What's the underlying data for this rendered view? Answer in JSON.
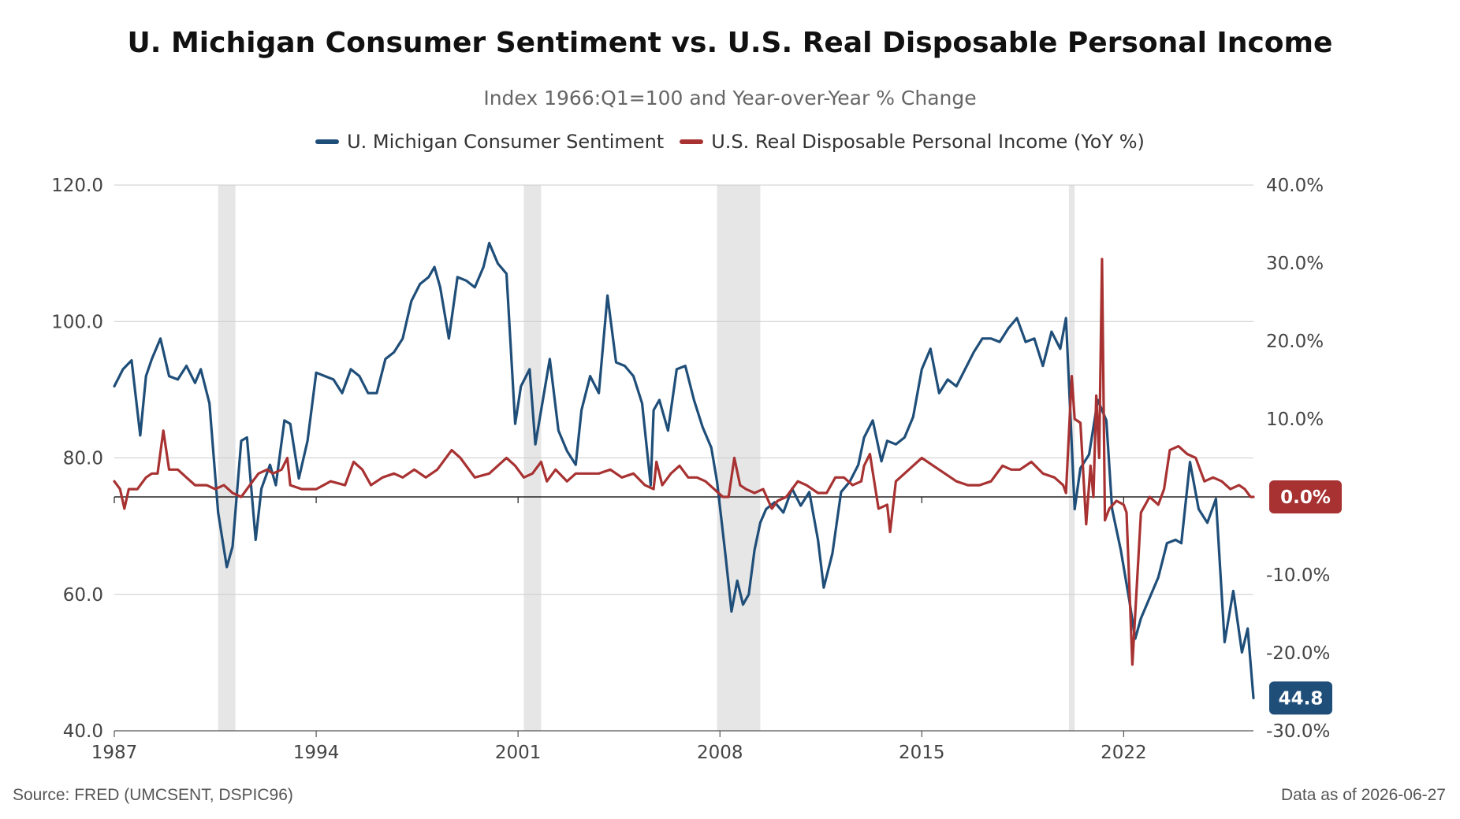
{
  "title": "U. Michigan Consumer Sentiment vs. U.S. Real Disposable Personal Income",
  "subtitle": "Index 1966:Q1=100 and Year-over-Year % Change",
  "footer": {
    "source": "Source: FRED (UMCSENT, DSPIC96)",
    "asof": "Data as of 2026-06-27"
  },
  "colors": {
    "sentiment": "#1f4e79",
    "income": "#a83232",
    "recession": "#e6e6e6",
    "grid": "#cccccc"
  },
  "chart_data": {
    "type": "line",
    "legend": "top-center",
    "grid": true,
    "xlim": [
      1987,
      2026.5
    ],
    "x_ticks": [
      "1987",
      "1994",
      "2001",
      "2008",
      "2015",
      "2022"
    ],
    "y_left": {
      "ylim": [
        40,
        120
      ],
      "ticks": [
        "40.0",
        "60.0",
        "80.0",
        "100.0",
        "120.0"
      ]
    },
    "y_right": {
      "ylim": [
        -30,
        40
      ],
      "ticks": [
        "-30.0%",
        "-20.0%",
        "-10.0%",
        "0.0%",
        "10.0%",
        "20.0%",
        "30.0%",
        "40.0%"
      ]
    },
    "recessions": [
      [
        1990.6,
        1991.2
      ],
      [
        2001.2,
        2001.8
      ],
      [
        2007.9,
        2009.4
      ],
      [
        2020.1,
        2020.3
      ]
    ],
    "zero_line_right": 0,
    "series": [
      {
        "name": "U. Michigan Consumer Sentiment",
        "axis": "left",
        "last_value_label": "44.8",
        "x": [
          1987.0,
          1987.3,
          1987.6,
          1987.9,
          1988.1,
          1988.3,
          1988.6,
          1988.9,
          1989.2,
          1989.5,
          1989.8,
          1990.0,
          1990.3,
          1990.6,
          1990.9,
          1991.1,
          1991.4,
          1991.6,
          1991.9,
          1992.1,
          1992.4,
          1992.6,
          1992.9,
          1993.1,
          1993.4,
          1993.7,
          1994.0,
          1994.3,
          1994.6,
          1994.9,
          1995.2,
          1995.5,
          1995.8,
          1996.1,
          1996.4,
          1996.7,
          1997.0,
          1997.3,
          1997.6,
          1997.9,
          1998.1,
          1998.3,
          1998.6,
          1998.9,
          1999.2,
          1999.5,
          1999.8,
          2000.0,
          2000.3,
          2000.6,
          2000.9,
          2001.1,
          2001.4,
          2001.6,
          2001.9,
          2002.1,
          2002.4,
          2002.7,
          2003.0,
          2003.2,
          2003.5,
          2003.8,
          2004.1,
          2004.4,
          2004.7,
          2005.0,
          2005.3,
          2005.6,
          2005.7,
          2005.9,
          2006.2,
          2006.5,
          2006.8,
          2007.1,
          2007.4,
          2007.7,
          2007.9,
          2008.2,
          2008.4,
          2008.6,
          2008.8,
          2009.0,
          2009.2,
          2009.4,
          2009.6,
          2009.9,
          2010.2,
          2010.5,
          2010.8,
          2011.1,
          2011.4,
          2011.6,
          2011.9,
          2012.2,
          2012.5,
          2012.8,
          2013.0,
          2013.3,
          2013.6,
          2013.8,
          2014.1,
          2014.4,
          2014.7,
          2015.0,
          2015.3,
          2015.6,
          2015.9,
          2016.2,
          2016.5,
          2016.8,
          2017.1,
          2017.4,
          2017.7,
          2018.0,
          2018.3,
          2018.6,
          2018.9,
          2019.2,
          2019.5,
          2019.8,
          2020.0,
          2020.3,
          2020.5,
          2020.8,
          2021.1,
          2021.4,
          2021.6,
          2021.9,
          2022.2,
          2022.4,
          2022.6,
          2022.9,
          2023.2,
          2023.5,
          2023.8,
          2024.0,
          2024.3,
          2024.6,
          2024.9,
          2025.2,
          2025.5,
          2025.8,
          2026.1,
          2026.3,
          2026.5
        ],
        "values": [
          90.5,
          93.0,
          94.3,
          83.3,
          92.0,
          94.5,
          97.5,
          92.0,
          91.5,
          93.5,
          91.0,
          93.0,
          88.0,
          72.0,
          64.0,
          67.0,
          82.5,
          83.0,
          68.0,
          75.5,
          79.0,
          76.0,
          85.5,
          85.0,
          77.0,
          82.5,
          92.5,
          92.0,
          91.5,
          89.5,
          93.0,
          92.0,
          89.5,
          89.5,
          94.5,
          95.5,
          97.5,
          103.0,
          105.5,
          106.5,
          108.0,
          105.0,
          97.5,
          106.5,
          106.0,
          105.0,
          108.0,
          111.5,
          108.5,
          107.0,
          85.0,
          90.5,
          93.0,
          82.0,
          89.5,
          94.5,
          84.0,
          81.0,
          79.0,
          87.0,
          92.0,
          89.5,
          103.8,
          94.0,
          93.5,
          92.0,
          88.0,
          76.0,
          87.0,
          88.5,
          84.0,
          93.0,
          93.5,
          88.5,
          84.5,
          81.5,
          76.5,
          65.5,
          57.5,
          62.0,
          58.5,
          60.0,
          66.5,
          70.5,
          72.5,
          73.5,
          72.0,
          75.5,
          73.0,
          75.0,
          68.0,
          61.0,
          66.0,
          75.0,
          76.5,
          79.0,
          83.0,
          85.5,
          79.5,
          82.5,
          82.0,
          83.0,
          86.0,
          93.0,
          96.0,
          89.5,
          91.5,
          90.5,
          93.0,
          95.5,
          97.5,
          97.5,
          97.0,
          99.0,
          100.5,
          97.0,
          97.5,
          93.5,
          98.5,
          96.0,
          100.5,
          72.5,
          78.5,
          80.5,
          88.5,
          85.5,
          72.5,
          66.5,
          59.0,
          53.5,
          56.5,
          59.5,
          62.5,
          67.5,
          68.0,
          67.5,
          79.4,
          72.5,
          70.5,
          74.0,
          53.0,
          60.5,
          51.5,
          55.0,
          44.8
        ]
      },
      {
        "name": "U.S. Real Disposable Personal Income (YoY %)",
        "axis": "right",
        "last_value_label": "0.0%",
        "x": [
          1987.0,
          1987.2,
          1987.35,
          1987.5,
          1987.8,
          1988.1,
          1988.3,
          1988.5,
          1988.7,
          1988.9,
          1989.2,
          1989.5,
          1989.8,
          1990.2,
          1990.5,
          1990.8,
          1991.1,
          1991.4,
          1991.7,
          1992.0,
          1992.3,
          1992.5,
          1992.8,
          1993.0,
          1993.1,
          1993.5,
          1994.0,
          1994.5,
          1995.0,
          1995.3,
          1995.6,
          1995.9,
          1996.3,
          1996.7,
          1997.0,
          1997.4,
          1997.8,
          1998.2,
          1998.7,
          1999.0,
          1999.5,
          2000.0,
          2000.3,
          2000.6,
          2000.9,
          2001.2,
          2001.5,
          2001.8,
          2002.0,
          2002.3,
          2002.7,
          2003.0,
          2003.4,
          2003.8,
          2004.2,
          2004.6,
          2005.0,
          2005.4,
          2005.7,
          2005.8,
          2006.0,
          2006.3,
          2006.6,
          2006.9,
          2007.2,
          2007.5,
          2007.8,
          2008.1,
          2008.3,
          2008.5,
          2008.7,
          2008.9,
          2009.2,
          2009.5,
          2009.8,
          2010.0,
          2010.3,
          2010.7,
          2011.0,
          2011.4,
          2011.7,
          2012.0,
          2012.3,
          2012.6,
          2012.9,
          2013.0,
          2013.2,
          2013.5,
          2013.8,
          2013.9,
          2014.1,
          2014.4,
          2014.7,
          2015.0,
          2015.4,
          2015.8,
          2016.2,
          2016.6,
          2017.0,
          2017.4,
          2017.8,
          2018.1,
          2018.4,
          2018.8,
          2019.2,
          2019.6,
          2019.9,
          2020.0,
          2020.2,
          2020.3,
          2020.5,
          2020.7,
          2020.85,
          2020.95,
          2021.05,
          2021.15,
          2021.25,
          2021.35,
          2021.5,
          2021.75,
          2022.0,
          2022.1,
          2022.3,
          2022.6,
          2022.9,
          2023.2,
          2023.4,
          2023.6,
          2023.9,
          2024.2,
          2024.5,
          2024.8,
          2025.1,
          2025.4,
          2025.7,
          2026.0,
          2026.2,
          2026.4,
          2026.5
        ],
        "values": [
          2.0,
          1.0,
          -1.5,
          1.0,
          1.0,
          2.5,
          3.0,
          3.0,
          8.5,
          3.5,
          3.5,
          2.5,
          1.5,
          1.5,
          1.0,
          1.5,
          0.5,
          0.0,
          1.5,
          3.0,
          3.5,
          3.0,
          3.5,
          5.0,
          1.5,
          1.0,
          1.0,
          2.0,
          1.5,
          4.5,
          3.5,
          1.5,
          2.5,
          3.0,
          2.5,
          3.5,
          2.5,
          3.5,
          6.0,
          5.0,
          2.5,
          3.0,
          4.0,
          5.0,
          4.0,
          2.5,
          3.0,
          4.5,
          2.0,
          3.5,
          2.0,
          3.0,
          3.0,
          3.0,
          3.5,
          2.5,
          3.0,
          1.5,
          1.0,
          4.5,
          1.5,
          3.0,
          4.0,
          2.5,
          2.5,
          2.0,
          1.0,
          0.0,
          0.0,
          5.0,
          1.5,
          1.0,
          0.5,
          1.0,
          -1.5,
          -0.5,
          0.0,
          2.0,
          1.5,
          0.5,
          0.5,
          2.5,
          2.5,
          1.5,
          2.0,
          4.0,
          5.5,
          -1.5,
          -1.0,
          -4.5,
          2.0,
          3.0,
          4.0,
          5.0,
          4.0,
          3.0,
          2.0,
          1.5,
          1.5,
          2.0,
          4.0,
          3.5,
          3.5,
          4.5,
          3.0,
          2.5,
          1.5,
          0.5,
          15.5,
          10.0,
          9.5,
          -3.5,
          4.0,
          0.0,
          13.0,
          5.0,
          30.5,
          -3.0,
          -1.5,
          -0.5,
          -1.0,
          -2.0,
          -21.5,
          -2.0,
          0.0,
          -1.0,
          1.0,
          6.0,
          6.5,
          5.5,
          5.0,
          2.0,
          2.5,
          2.0,
          1.0,
          1.5,
          1.0,
          0.0,
          0.0
        ]
      }
    ]
  }
}
